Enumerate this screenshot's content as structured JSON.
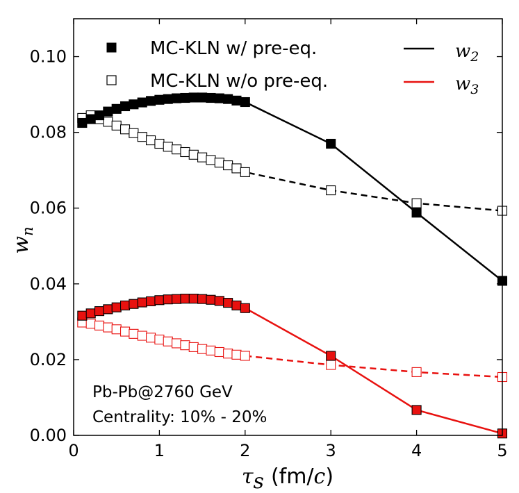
{
  "chart_data": {
    "type": "line",
    "xlabel": "τ",
    "xlabel_sub": "s",
    "xlabel_units_open": "(fm/",
    "xlabel_units_var": "c",
    "xlabel_units_close": ")",
    "ylabel": "w",
    "ylabel_sub": "n",
    "xlim": [
      0,
      5
    ],
    "ylim": [
      0,
      0.11
    ],
    "xticks": [
      0,
      1,
      2,
      3,
      4,
      5
    ],
    "xtick_labels": [
      "0",
      "1",
      "2",
      "3",
      "4",
      "5"
    ],
    "yticks": [
      0.0,
      0.02,
      0.04,
      0.06,
      0.08,
      0.1
    ],
    "ytick_labels": [
      "0.00",
      "0.02",
      "0.04",
      "0.06",
      "0.08",
      "0.10"
    ],
    "legend": {
      "marker_entries": [
        {
          "label": "MC-KLN w/ pre-eq.",
          "filled": true
        },
        {
          "label": "MC-KLN w/o pre-eq.",
          "filled": false
        }
      ],
      "line_entries": [
        {
          "symbol": "w",
          "sub": "2",
          "color": "#000000"
        },
        {
          "symbol": "w",
          "sub": "3",
          "color": "#e8110f"
        }
      ]
    },
    "annotations": [
      "Pb-Pb@2760 GeV",
      "Centrality: 10% - 20%"
    ],
    "series": [
      {
        "name": "w2 w/ pre-eq.",
        "color": "#000000",
        "filled": true,
        "dashed": false,
        "x": [
          0.1,
          0.2,
          0.3,
          0.4,
          0.5,
          0.6,
          0.7,
          0.8,
          0.9,
          1.0,
          1.1,
          1.2,
          1.3,
          1.4,
          1.5,
          1.6,
          1.7,
          1.8,
          1.9,
          2.0,
          3.0,
          4.0,
          5.0
        ],
        "y": [
          0.0825,
          0.0835,
          0.0845,
          0.0855,
          0.0862,
          0.0869,
          0.0874,
          0.0879,
          0.0883,
          0.0886,
          0.0888,
          0.089,
          0.0891,
          0.0892,
          0.0892,
          0.0891,
          0.089,
          0.0888,
          0.0884,
          0.088,
          0.077,
          0.0588,
          0.0408
        ]
      },
      {
        "name": "w2 w/o pre-eq.",
        "color": "#000000",
        "filled": false,
        "dashed": true,
        "x": [
          0.1,
          0.2,
          0.3,
          0.4,
          0.5,
          0.6,
          0.7,
          0.8,
          0.9,
          1.0,
          1.1,
          1.2,
          1.3,
          1.4,
          1.5,
          1.6,
          1.7,
          1.8,
          1.9,
          2.0,
          3.0,
          4.0,
          5.0
        ],
        "y": [
          0.0838,
          0.0845,
          0.0835,
          0.0828,
          0.0818,
          0.0808,
          0.0798,
          0.0788,
          0.0779,
          0.077,
          0.0762,
          0.0755,
          0.0748,
          0.0741,
          0.0734,
          0.0727,
          0.072,
          0.0713,
          0.0705,
          0.0695,
          0.0647,
          0.0613,
          0.0593
        ]
      },
      {
        "name": "w3 w/ pre-eq.",
        "color": "#e8110f",
        "filled": true,
        "dashed": false,
        "x": [
          0.1,
          0.2,
          0.3,
          0.4,
          0.5,
          0.6,
          0.7,
          0.8,
          0.9,
          1.0,
          1.1,
          1.2,
          1.3,
          1.4,
          1.5,
          1.6,
          1.7,
          1.8,
          1.9,
          2.0,
          3.0,
          4.0,
          5.0
        ],
        "y": [
          0.0316,
          0.0322,
          0.0328,
          0.0333,
          0.0338,
          0.0343,
          0.0347,
          0.0351,
          0.0354,
          0.0357,
          0.0359,
          0.036,
          0.0361,
          0.0361,
          0.036,
          0.0358,
          0.0355,
          0.035,
          0.0343,
          0.0336,
          0.021,
          0.0067,
          0.0005
        ]
      },
      {
        "name": "w3 w/o pre-eq.",
        "color": "#e8110f",
        "filled": false,
        "dashed": true,
        "x": [
          0.1,
          0.2,
          0.3,
          0.4,
          0.5,
          0.6,
          0.7,
          0.8,
          0.9,
          1.0,
          1.1,
          1.2,
          1.3,
          1.4,
          1.5,
          1.6,
          1.7,
          1.8,
          1.9,
          2.0,
          3.0,
          4.0,
          5.0
        ],
        "y": [
          0.0298,
          0.0295,
          0.029,
          0.0285,
          0.028,
          0.0274,
          0.0268,
          0.0263,
          0.0258,
          0.0253,
          0.0248,
          0.0243,
          0.0238,
          0.0233,
          0.0228,
          0.0224,
          0.022,
          0.0216,
          0.0213,
          0.021,
          0.0186,
          0.0167,
          0.0154
        ]
      }
    ]
  }
}
